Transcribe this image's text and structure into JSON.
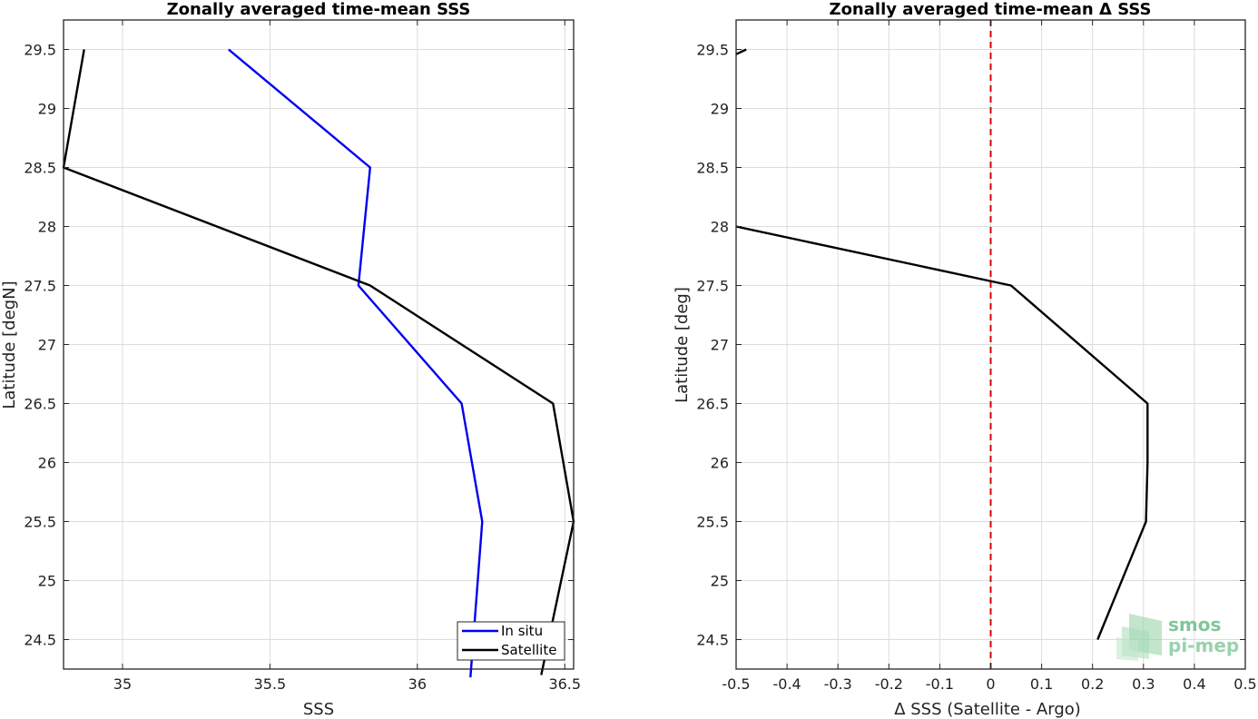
{
  "chart_data": [
    {
      "type": "line",
      "title": "Zonally averaged time-mean SSS",
      "xlabel": "SSS",
      "ylabel": "Latitude [degN]",
      "xlim": [
        34.8,
        36.53
      ],
      "ylim": [
        24.25,
        29.75
      ],
      "xticks": [
        "35",
        "35.5",
        "36",
        "36.5"
      ],
      "yticks": [
        "24.5",
        "25",
        "25.5",
        "26",
        "26.5",
        "27",
        "27.5",
        "28",
        "28.5",
        "29",
        "29.5"
      ],
      "grid": true,
      "legend": {
        "position": "bottom-right",
        "entries": [
          "In situ",
          "Satellite"
        ]
      },
      "series": [
        {
          "name": "In situ",
          "color": "#0000ee",
          "x": [
            36.18,
            36.22,
            36.15,
            35.8,
            35.84,
            35.36
          ],
          "y": [
            24.18,
            25.5,
            26.5,
            27.5,
            28.5,
            29.5
          ]
        },
        {
          "name": "Satellite",
          "color": "#000000",
          "x": [
            36.42,
            36.53,
            36.46,
            35.84,
            34.8,
            34.87
          ],
          "y": [
            24.2,
            25.5,
            26.5,
            27.5,
            28.5,
            29.5
          ]
        }
      ]
    },
    {
      "type": "line",
      "title": "Zonally averaged time-mean Δ SSS",
      "xlabel": "Δ SSS (Satellite - Argo)",
      "ylabel": "Latitude [deg]",
      "xlim": [
        -0.5,
        0.5
      ],
      "ylim": [
        24.25,
        29.75
      ],
      "xticks": [
        "-0.5",
        "-0.4",
        "-0.3",
        "-0.2",
        "-0.1",
        "0",
        "0.1",
        "0.2",
        "0.3",
        "0.4",
        "0.5"
      ],
      "yticks": [
        "24.5",
        "25",
        "25.5",
        "26",
        "26.5",
        "27",
        "27.5",
        "28",
        "28.5",
        "29",
        "29.5"
      ],
      "grid": true,
      "reference_line": {
        "x": 0,
        "style": "dashed",
        "color": "#dd0000"
      },
      "series": [
        {
          "color": "#000000",
          "segments": [
            {
              "x": [
                0.21,
                0.305,
                0.308,
                0.308,
                0.04,
                -0.5
              ],
              "y": [
                24.5,
                25.5,
                26.0,
                26.5,
                27.5,
                28.0
              ]
            },
            {
              "x": [
                -0.5,
                -0.48
              ],
              "y": [
                29.46,
                29.5
              ]
            }
          ]
        }
      ]
    }
  ],
  "logo": {
    "line1": "smos",
    "line2": "pi-mep"
  }
}
